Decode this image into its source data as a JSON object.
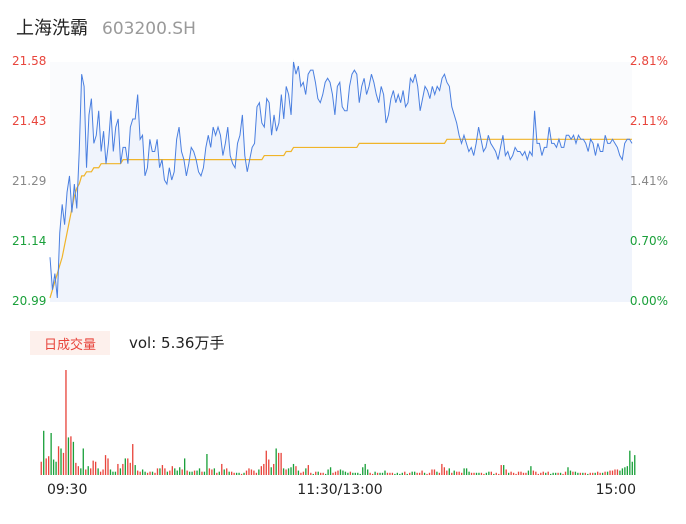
{
  "header": {
    "name": "上海洗霸",
    "code": "603200.SH"
  },
  "colors": {
    "up": "#e8453c",
    "down": "#1aa03a",
    "flat": "#888888",
    "price_line": "#4a7fe0",
    "avg_line": "#f0b429"
  },
  "volume": {
    "badge_label": "日成交量",
    "text": "vol: 5.36万手"
  },
  "chart_data": [
    {
      "type": "line",
      "title": "",
      "x_ticks": [
        "09:30",
        "11:30/13:00",
        "15:00"
      ],
      "y_ticks_left": [
        "21.58",
        "21.43",
        "21.29",
        "21.14",
        "20.99"
      ],
      "y_ticks_right": [
        "2.81%",
        "2.11%",
        "1.41%",
        "0.70%",
        "0.00%"
      ],
      "ylim": [
        20.99,
        21.58
      ],
      "price": [
        21.1,
        21.02,
        21.06,
        21.0,
        21.16,
        21.23,
        21.18,
        21.26,
        21.3,
        21.21,
        21.28,
        21.22,
        21.36,
        21.55,
        21.52,
        21.32,
        21.45,
        21.49,
        21.38,
        21.4,
        21.46,
        21.36,
        21.41,
        21.33,
        21.38,
        21.46,
        21.36,
        21.42,
        21.44,
        21.33,
        21.37,
        21.37,
        21.33,
        21.42,
        21.44,
        21.44,
        21.5,
        21.39,
        21.4,
        21.3,
        21.32,
        21.39,
        21.36,
        21.36,
        21.39,
        21.32,
        21.34,
        21.29,
        21.28,
        21.32,
        21.29,
        21.31,
        21.39,
        21.42,
        21.36,
        21.34,
        21.3,
        21.33,
        21.37,
        21.36,
        21.34,
        21.31,
        21.3,
        21.32,
        21.37,
        21.4,
        21.37,
        21.42,
        21.4,
        21.42,
        21.4,
        21.35,
        21.38,
        21.42,
        21.35,
        21.33,
        21.32,
        21.38,
        21.4,
        21.45,
        21.35,
        21.31,
        21.34,
        21.37,
        21.38,
        21.47,
        21.48,
        21.43,
        21.42,
        21.49,
        21.48,
        21.4,
        21.45,
        21.41,
        21.43,
        21.5,
        21.44,
        21.52,
        21.5,
        21.45,
        21.59,
        21.55,
        21.57,
        21.52,
        21.53,
        21.5,
        21.55,
        21.56,
        21.56,
        21.53,
        21.49,
        21.48,
        21.5,
        21.53,
        21.54,
        21.53,
        21.5,
        21.45,
        21.52,
        21.53,
        21.47,
        21.46,
        21.46,
        21.52,
        21.55,
        21.56,
        21.55,
        21.48,
        21.52,
        21.54,
        21.5,
        21.52,
        21.55,
        21.53,
        21.5,
        21.48,
        21.52,
        21.5,
        21.43,
        21.45,
        21.49,
        21.51,
        21.48,
        21.5,
        21.48,
        21.51,
        21.47,
        21.48,
        21.54,
        21.53,
        21.55,
        21.52,
        21.46,
        21.49,
        21.52,
        21.51,
        21.49,
        21.52,
        21.5,
        21.52,
        21.51,
        21.54,
        21.55,
        21.53,
        21.52,
        21.47,
        21.45,
        21.43,
        21.4,
        21.38,
        21.4,
        21.38,
        21.36,
        21.37,
        21.35,
        21.38,
        21.42,
        21.39,
        21.36,
        21.37,
        21.4,
        21.38,
        21.37,
        21.36,
        21.34,
        21.37,
        21.4,
        21.35,
        21.36,
        21.34,
        21.35,
        21.37,
        21.36,
        21.36,
        21.35,
        21.36,
        21.34,
        21.36,
        21.35,
        21.46,
        21.38,
        21.38,
        21.35,
        21.37,
        21.37,
        21.42,
        21.38,
        21.38,
        21.37,
        21.39,
        21.37,
        21.37,
        21.4,
        21.4,
        21.39,
        21.4,
        21.38,
        21.4,
        21.39,
        21.39,
        21.38,
        21.36,
        21.39,
        21.38,
        21.35,
        21.38,
        21.36,
        21.36,
        21.4,
        21.38,
        21.38,
        21.39,
        21.38,
        21.37,
        21.35,
        21.34,
        21.38,
        21.39,
        21.39,
        21.38
      ],
      "avg_price": [
        21.0,
        21.02,
        21.04,
        21.06,
        21.08,
        21.1,
        21.13,
        21.16,
        21.19,
        21.22,
        21.25,
        21.27,
        21.28,
        21.3,
        21.3,
        21.31,
        21.31,
        21.31,
        21.32,
        21.32,
        21.32,
        21.33,
        21.33,
        21.33,
        21.33,
        21.33,
        21.33,
        21.33,
        21.33,
        21.33,
        21.34,
        21.34,
        21.34,
        21.34,
        21.34,
        21.34,
        21.34,
        21.34,
        21.34,
        21.34,
        21.34,
        21.34,
        21.34,
        21.34,
        21.34,
        21.34,
        21.34,
        21.34,
        21.34,
        21.34,
        21.34,
        21.34,
        21.34,
        21.34,
        21.34,
        21.34,
        21.34,
        21.34,
        21.34,
        21.34,
        21.34,
        21.34,
        21.34,
        21.34,
        21.34,
        21.34,
        21.34,
        21.34,
        21.34,
        21.34,
        21.34,
        21.34,
        21.34,
        21.34,
        21.34,
        21.34,
        21.34,
        21.34,
        21.34,
        21.34,
        21.34,
        21.34,
        21.34,
        21.34,
        21.34,
        21.34,
        21.34,
        21.34,
        21.35,
        21.35,
        21.35,
        21.35,
        21.35,
        21.35,
        21.35,
        21.35,
        21.35,
        21.36,
        21.36,
        21.36,
        21.37,
        21.37,
        21.37,
        21.37,
        21.37,
        21.37,
        21.37,
        21.37,
        21.37,
        21.37,
        21.37,
        21.37,
        21.37,
        21.37,
        21.37,
        21.37,
        21.37,
        21.37,
        21.37,
        21.37,
        21.37,
        21.37,
        21.37,
        21.37,
        21.37,
        21.37,
        21.37,
        21.38,
        21.38,
        21.38,
        21.38,
        21.38,
        21.38,
        21.38,
        21.38,
        21.38,
        21.38,
        21.38,
        21.38,
        21.38,
        21.38,
        21.38,
        21.38,
        21.38,
        21.38,
        21.38,
        21.38,
        21.38,
        21.38,
        21.38,
        21.38,
        21.38,
        21.38,
        21.38,
        21.38,
        21.38,
        21.38,
        21.38,
        21.38,
        21.38,
        21.38,
        21.38,
        21.38,
        21.39,
        21.39,
        21.39,
        21.39,
        21.39,
        21.39,
        21.39,
        21.39,
        21.39,
        21.39,
        21.39,
        21.39,
        21.39,
        21.39,
        21.39,
        21.39,
        21.39,
        21.39,
        21.39,
        21.39,
        21.39,
        21.39,
        21.39,
        21.39,
        21.39,
        21.39,
        21.39,
        21.39,
        21.39,
        21.39,
        21.39,
        21.39,
        21.39,
        21.39,
        21.39,
        21.39,
        21.39,
        21.39,
        21.39,
        21.39,
        21.39,
        21.39,
        21.39,
        21.39,
        21.39,
        21.39,
        21.39,
        21.39,
        21.39,
        21.39,
        21.39,
        21.39,
        21.39,
        21.39,
        21.39,
        21.39,
        21.39,
        21.39,
        21.39,
        21.39,
        21.39,
        21.39,
        21.39,
        21.39,
        21.39,
        21.39,
        21.39,
        21.39,
        21.39,
        21.39,
        21.39,
        21.39,
        21.39,
        21.39,
        21.39,
        21.39,
        21.39
      ]
    },
    {
      "type": "bar",
      "title": "",
      "x_ticks": [
        "09:30",
        "11:30/13:00",
        "15:00"
      ],
      "volume": [
        12,
        40,
        15,
        17,
        38,
        14,
        12,
        26,
        24,
        20,
        95,
        34,
        35,
        30,
        11,
        8,
        6,
        24,
        5,
        8,
        6,
        13,
        12,
        6,
        3,
        5,
        18,
        15,
        5,
        3,
        3,
        10,
        6,
        10,
        15,
        15,
        11,
        28,
        9,
        4,
        3,
        5,
        3,
        2,
        3,
        3,
        2,
        6,
        6,
        9,
        6,
        3,
        4,
        8,
        6,
        4,
        7,
        5,
        15,
        4,
        3,
        3,
        4,
        4,
        6,
        3,
        3,
        19,
        6,
        5,
        6,
        2,
        3,
        10,
        5,
        6,
        3,
        3,
        2,
        2,
        2,
        1,
        2,
        4,
        6,
        5,
        4,
        2,
        5,
        8,
        10,
        22,
        14,
        7,
        10,
        24,
        20,
        20,
        6,
        5,
        6,
        7,
        10,
        8,
        4,
        2,
        3,
        6,
        9,
        2,
        1,
        3,
        3,
        2,
        2,
        1,
        5,
        7,
        2,
        3,
        4,
        5,
        4,
        3,
        2,
        3,
        2,
        2,
        2,
        1,
        7,
        10,
        5,
        2,
        1,
        3,
        2,
        2,
        2,
        4,
        2,
        2,
        2,
        1,
        2,
        1,
        2,
        3,
        1,
        2,
        3,
        3,
        2,
        2,
        4,
        2,
        1,
        2,
        5,
        5,
        3,
        2,
        10,
        7,
        4,
        6,
        2,
        4,
        3,
        3,
        2,
        6,
        6,
        3,
        2,
        2,
        2,
        2,
        2,
        1,
        2,
        3,
        3,
        1,
        2,
        1,
        9,
        9,
        5,
        2,
        3,
        2,
        1,
        3,
        3,
        2,
        2,
        4,
        8,
        4,
        3,
        1,
        2,
        3,
        2,
        3,
        1,
        2,
        2,
        2,
        2,
        1,
        3,
        7,
        4,
        3,
        3,
        2,
        2,
        2,
        2,
        1,
        2,
        2,
        2,
        3,
        2,
        2,
        3,
        3,
        4,
        4,
        5,
        5,
        4,
        6,
        7,
        8,
        22,
        12,
        18
      ],
      "volume_direction": [
        "up",
        "down",
        "up",
        "up",
        "down",
        "down",
        "down",
        "up",
        "down",
        "up",
        "up",
        "down",
        "up",
        "down",
        "up",
        "up",
        "down",
        "down",
        "up",
        "down",
        "up",
        "up",
        "up",
        "down",
        "up",
        "up",
        "up",
        "up",
        "down",
        "down",
        "down",
        "up",
        "down",
        "up",
        "down",
        "up",
        "up",
        "up",
        "down",
        "up",
        "up",
        "down",
        "down",
        "up",
        "up",
        "down",
        "up",
        "up",
        "down",
        "up",
        "up",
        "down",
        "up",
        "up",
        "down",
        "down",
        "down",
        "up",
        "down",
        "up",
        "down",
        "down",
        "up",
        "down",
        "down",
        "up",
        "down",
        "down",
        "up",
        "up",
        "down",
        "up",
        "down",
        "up",
        "down",
        "up",
        "down",
        "up",
        "up",
        "down",
        "down",
        "up",
        "down",
        "up",
        "up",
        "up",
        "up",
        "up",
        "down",
        "up",
        "up",
        "up",
        "up",
        "down",
        "up",
        "down",
        "up",
        "up",
        "down",
        "up",
        "down",
        "down",
        "down",
        "up",
        "down",
        "up",
        "up",
        "down",
        "up",
        "up",
        "down",
        "up",
        "down",
        "up",
        "up",
        "down",
        "down",
        "down",
        "up",
        "up",
        "up",
        "down",
        "down",
        "down",
        "down",
        "up",
        "down",
        "down",
        "down",
        "down",
        "down",
        "down",
        "down",
        "up",
        "up",
        "down",
        "up",
        "down",
        "down",
        "down",
        "up",
        "up",
        "up",
        "down",
        "down",
        "down",
        "down",
        "up",
        "down",
        "up",
        "down",
        "down",
        "up",
        "up",
        "up",
        "down",
        "up",
        "up",
        "up",
        "up",
        "down",
        "up",
        "up",
        "up",
        "up",
        "down",
        "up",
        "down",
        "up",
        "up",
        "up",
        "down",
        "down",
        "down",
        "up",
        "up",
        "down",
        "down",
        "up",
        "up",
        "down",
        "down",
        "up",
        "down",
        "up",
        "up",
        "up",
        "down",
        "up",
        "down",
        "up",
        "up",
        "up",
        "up",
        "up",
        "up",
        "up",
        "down",
        "down",
        "up",
        "up",
        "up",
        "up",
        "up",
        "down",
        "up",
        "down",
        "down",
        "down",
        "up",
        "down",
        "up",
        "up",
        "down",
        "down",
        "up",
        "down",
        "down",
        "up",
        "down",
        "up",
        "down",
        "up",
        "up",
        "down",
        "up",
        "up",
        "down",
        "up",
        "down",
        "up",
        "up",
        "up",
        "up",
        "down",
        "down",
        "down",
        "down",
        "down"
      ]
    }
  ]
}
